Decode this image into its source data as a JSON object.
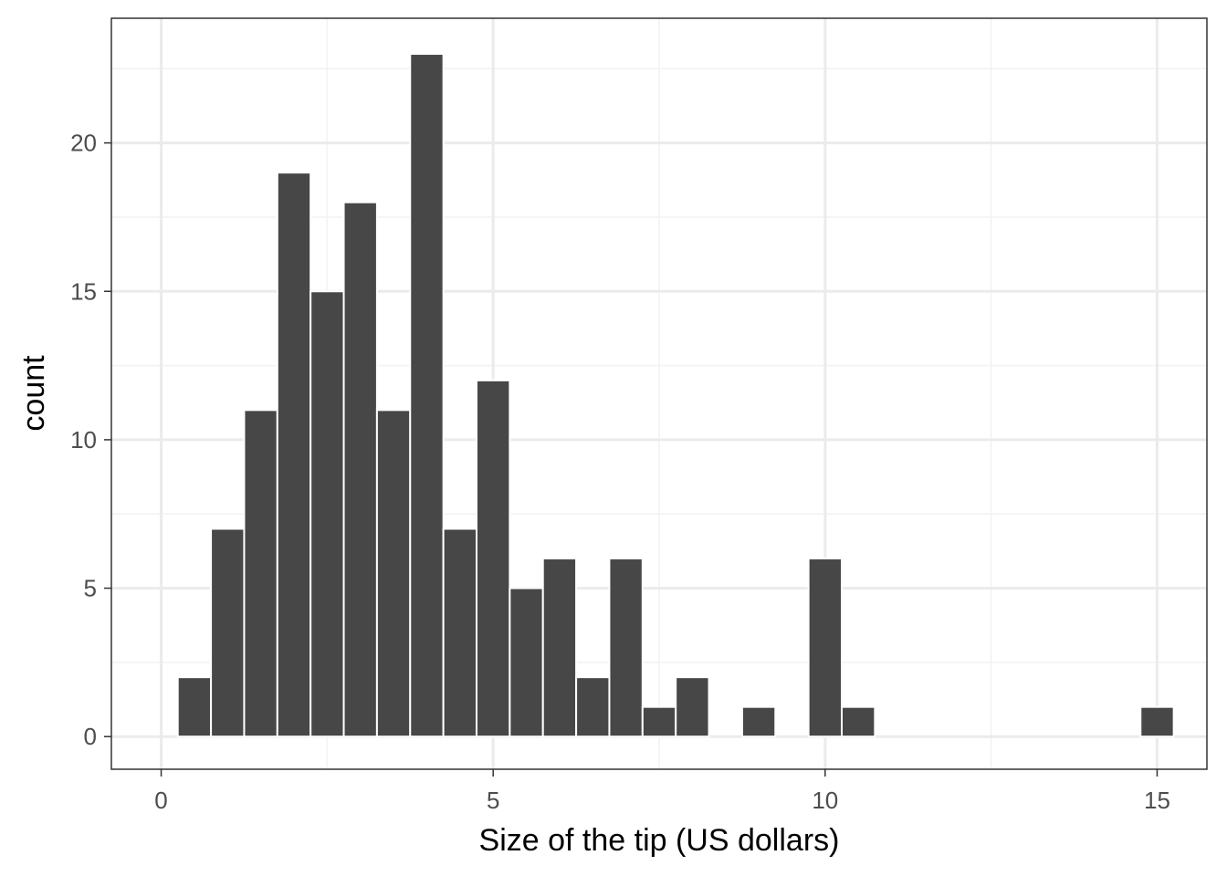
{
  "chart_data": {
    "type": "bar",
    "subtype": "histogram",
    "title": "",
    "xlabel": "Size of the tip (US dollars)",
    "ylabel": "count",
    "bin_width": 0.5,
    "bins": [
      {
        "x": 0.5,
        "count": 2
      },
      {
        "x": 1.0,
        "count": 7
      },
      {
        "x": 1.5,
        "count": 11
      },
      {
        "x": 2.0,
        "count": 19
      },
      {
        "x": 2.5,
        "count": 15
      },
      {
        "x": 3.0,
        "count": 18
      },
      {
        "x": 3.5,
        "count": 11
      },
      {
        "x": 4.0,
        "count": 23
      },
      {
        "x": 4.5,
        "count": 7
      },
      {
        "x": 5.0,
        "count": 12
      },
      {
        "x": 5.5,
        "count": 5
      },
      {
        "x": 6.0,
        "count": 6
      },
      {
        "x": 6.5,
        "count": 2
      },
      {
        "x": 7.0,
        "count": 6
      },
      {
        "x": 7.5,
        "count": 1
      },
      {
        "x": 8.0,
        "count": 2
      },
      {
        "x": 8.5,
        "count": 0
      },
      {
        "x": 9.0,
        "count": 1
      },
      {
        "x": 9.5,
        "count": 0
      },
      {
        "x": 10.0,
        "count": 6
      },
      {
        "x": 10.5,
        "count": 1
      },
      {
        "x": 11.0,
        "count": 0
      },
      {
        "x": 11.5,
        "count": 0
      },
      {
        "x": 12.0,
        "count": 0
      },
      {
        "x": 12.5,
        "count": 0
      },
      {
        "x": 13.0,
        "count": 0
      },
      {
        "x": 13.5,
        "count": 0
      },
      {
        "x": 14.0,
        "count": 0
      },
      {
        "x": 14.5,
        "count": 0
      },
      {
        "x": 15.0,
        "count": 1
      }
    ],
    "xlim": [
      -0.75,
      15.75
    ],
    "ylim": [
      -1.1,
      24.2
    ],
    "x_ticks": [
      0,
      5,
      10,
      15
    ],
    "x_tick_labels": [
      "0",
      "5",
      "10",
      "15"
    ],
    "y_ticks": [
      0,
      5,
      10,
      15,
      20
    ],
    "y_tick_labels": [
      "0",
      "5",
      "10",
      "15",
      "20"
    ],
    "x_minor_ticks": [
      2.5,
      7.5,
      12.5
    ],
    "y_minor_ticks": [
      2.5,
      7.5,
      12.5,
      17.5,
      22.5
    ],
    "grid": true,
    "legend": "none",
    "colors": {
      "bar_fill": "#474747",
      "bar_border": "#ffffff",
      "grid_major": "#ebebeb",
      "grid_minor": "#f2f2f2",
      "panel_border": "#333333",
      "tick_text": "#4d4d4d",
      "title_text": "#000000"
    }
  }
}
